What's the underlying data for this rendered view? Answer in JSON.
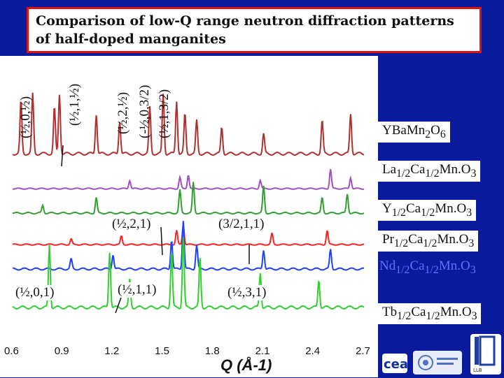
{
  "title": "Comparison of low-Q range neutron diffraction patterns of half-doped manganites",
  "peak_labels_vertical": [
    "(½,0,½)",
    "(½,1,½)",
    "(½,2,½)",
    "(-½,0,3/2)",
    "(½,1,3/2)"
  ],
  "peak_labels": [
    "(½,2,1)",
    "(3/2,1,1)",
    "(½,0,1)",
    "(½,1,1)",
    "(½,3,1)"
  ],
  "samples": [
    {
      "formula": "YBa",
      "sub1": "",
      "mid": "Mn",
      "sub2": "2",
      "end": "O",
      "sub3": "6",
      "color": "#b03030"
    },
    {
      "formula": "La",
      "sub1": "1/2",
      "mid": "Ca",
      "sub2": "1/2",
      "end": "Mn.O",
      "sub3": "3",
      "color": "#a050c0"
    },
    {
      "formula": "Y",
      "sub1": "1/2",
      "mid": "Ca",
      "sub2": "1/2",
      "end": "Mn.O",
      "sub3": "3",
      "color": "#30a030"
    },
    {
      "formula": "Pr",
      "sub1": "1/2",
      "mid": "Ca",
      "sub2": "1/2",
      "end": "Mn.O",
      "sub3": "3",
      "color": "#ff2020"
    },
    {
      "formula": "Nd",
      "sub1": "1/2",
      "mid": "Ca",
      "sub2": "1/2",
      "end": "Mn.O",
      "sub3": "3",
      "color": "#2040ff"
    },
    {
      "formula": "Tb",
      "sub1": "1/2",
      "mid": "Ca",
      "sub2": "1/2",
      "end": "Mn.O",
      "sub3": "3",
      "color": "#30d030"
    }
  ],
  "chart_data": {
    "type": "line",
    "xlabel": "Q (Å-1)",
    "x_ticks": [
      "0.6",
      "0.9",
      "1.2",
      "1.5",
      "1.8",
      "2.1",
      "2.4",
      "2.7"
    ],
    "xlim": [
      0.6,
      2.7
    ],
    "series": [
      {
        "name": "YBaMn2O6",
        "color": "#b03030",
        "peaks": [
          [
            0.65,
            0.8
          ],
          [
            0.72,
            0.9
          ],
          [
            0.85,
            0.7
          ],
          [
            0.88,
            0.9
          ],
          [
            1.1,
            0.6
          ],
          [
            1.24,
            0.5
          ],
          [
            1.42,
            0.7
          ],
          [
            1.5,
            0.9
          ],
          [
            1.58,
            0.8
          ],
          [
            1.63,
            0.6
          ],
          [
            1.7,
            0.5
          ],
          [
            1.85,
            0.4
          ],
          [
            2.1,
            0.3
          ],
          [
            2.45,
            0.5
          ],
          [
            2.62,
            0.6
          ]
        ]
      },
      {
        "name": "La1/2Ca1/2MnO3",
        "color": "#a050c0",
        "peaks": [
          [
            1.3,
            0.3
          ],
          [
            1.6,
            0.4
          ],
          [
            1.65,
            0.5
          ],
          [
            2.08,
            0.3
          ],
          [
            2.5,
            0.7
          ],
          [
            2.62,
            0.4
          ]
        ]
      },
      {
        "name": "Y1/2Ca1/2MnO3",
        "color": "#30a030",
        "peaks": [
          [
            0.78,
            0.2
          ],
          [
            1.1,
            0.4
          ],
          [
            1.6,
            0.6
          ],
          [
            1.68,
            0.8
          ],
          [
            2.1,
            0.7
          ],
          [
            2.45,
            0.4
          ],
          [
            2.6,
            0.5
          ]
        ]
      },
      {
        "name": "Pr1/2Ca1/2MnO3",
        "color": "#ff2020",
        "peaks": [
          [
            0.95,
            0.2
          ],
          [
            1.25,
            0.3
          ],
          [
            1.58,
            0.5
          ],
          [
            1.62,
            0.7
          ],
          [
            2.15,
            0.4
          ],
          [
            2.48,
            0.5
          ]
        ]
      },
      {
        "name": "Nd1/2Ca1/2MnO3",
        "color": "#2040ff",
        "peaks": [
          [
            0.95,
            0.2
          ],
          [
            1.2,
            0.3
          ],
          [
            1.55,
            0.6
          ],
          [
            1.62,
            1.0
          ],
          [
            1.7,
            0.5
          ],
          [
            2.1,
            0.4
          ],
          [
            2.5,
            0.4
          ]
        ]
      },
      {
        "name": "Tb1/2Ca1/2MnO3",
        "color": "#30d030",
        "peaks": [
          [
            0.82,
            0.9
          ],
          [
            1.18,
            0.8
          ],
          [
            1.3,
            0.4
          ],
          [
            1.55,
            0.8
          ],
          [
            1.62,
            1.0
          ],
          [
            1.72,
            0.7
          ],
          [
            2.08,
            0.5
          ],
          [
            2.43,
            0.4
          ]
        ]
      }
    ]
  }
}
